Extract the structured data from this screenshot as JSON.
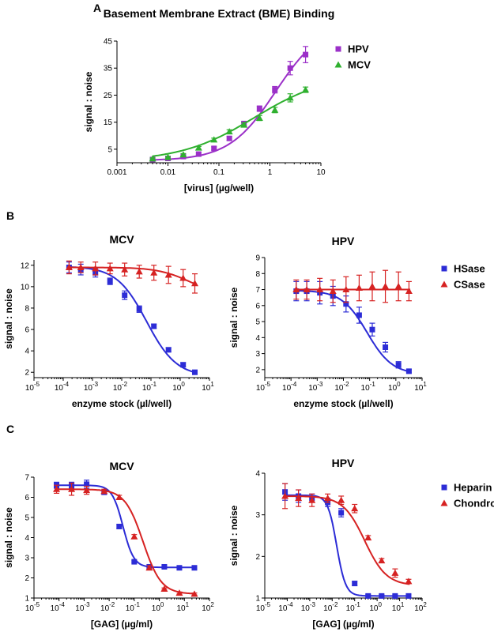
{
  "panels": [
    {
      "letter": "A"
    },
    {
      "letter": "B"
    },
    {
      "letter": "C"
    }
  ],
  "chart_data": [
    {
      "id": "A",
      "type": "scatter",
      "title": "Basement Membrane Extract (BME) Binding",
      "xlabel": "[virus] (µg/well)",
      "ylabel": "signal : noise",
      "xscale": "log",
      "xlim": [
        0.001,
        10
      ],
      "ylim": [
        0,
        45
      ],
      "xticks": [
        0.001,
        0.01,
        0.1,
        1,
        10
      ],
      "xticklabels": [
        "0.001",
        "0.01",
        "0.1",
        "1",
        "10"
      ],
      "yticks": [
        5,
        15,
        25,
        35,
        45
      ],
      "yticklabels": [
        "5",
        "15",
        "25",
        "35",
        "45"
      ],
      "legend": "top-right",
      "series": [
        {
          "name": "HPV",
          "color": "#9b30c8",
          "marker": "square",
          "x": [
            0.005,
            0.01,
            0.02,
            0.04,
            0.08,
            0.16,
            0.31,
            0.625,
            1.25,
            2.5,
            5
          ],
          "y": [
            1.2,
            1.6,
            2.3,
            3.2,
            5.3,
            9.0,
            14.5,
            20.0,
            27.0,
            35.0,
            40.0
          ],
          "err": [
            0.3,
            0.3,
            0.4,
            0.4,
            0.6,
            0.7,
            0.8,
            1.0,
            1.2,
            2.5,
            3.0
          ],
          "curve": {
            "bottom": 0.8,
            "top": 52,
            "ec50": 1.3,
            "hill": 0.95
          }
        },
        {
          "name": "MCV",
          "color": "#2fb02f",
          "marker": "triangle",
          "x": [
            0.005,
            0.01,
            0.02,
            0.04,
            0.08,
            0.16,
            0.31,
            0.625,
            1.25,
            2.5,
            5
          ],
          "y": [
            1.5,
            2.0,
            3.0,
            5.5,
            8.5,
            11.5,
            14.0,
            16.5,
            19.5,
            24.0,
            27.0
          ],
          "err": [
            0.3,
            0.3,
            0.4,
            0.5,
            0.6,
            0.7,
            0.8,
            0.9,
            1.0,
            1.5,
            1.0
          ],
          "curve": {
            "bottom": 0.5,
            "top": 33,
            "ec50": 0.5,
            "hill": 0.6
          }
        }
      ]
    },
    {
      "id": "B-left",
      "type": "scatter",
      "title": "MCV",
      "xlabel": "enzyme stock (µl/well)",
      "ylabel": "signal : noise",
      "xscale": "log",
      "xlim": [
        -5,
        1
      ],
      "ylim": [
        1.5,
        12.5
      ],
      "xticks": [
        -5,
        -4,
        -3,
        -2,
        -1,
        0,
        1
      ],
      "yticks": [
        2,
        4,
        6,
        8,
        10,
        12
      ],
      "yticklabels": [
        "2",
        "4",
        "6",
        "8",
        "10",
        "12"
      ],
      "series": [
        {
          "name": "HSase",
          "color": "#2c2cd6",
          "marker": "square",
          "x": [
            -3.8,
            -3.4,
            -2.9,
            -2.4,
            -1.9,
            -1.4,
            -0.9,
            -0.4,
            0.1,
            0.5
          ],
          "y": [
            11.8,
            11.6,
            11.3,
            10.5,
            9.2,
            7.9,
            6.3,
            4.1,
            2.7,
            2.0
          ],
          "err": [
            0.5,
            0.5,
            0.4,
            0.3,
            0.4,
            0.3,
            0.2,
            0.2,
            0.2,
            0.2
          ],
          "curve": {
            "top": 11.9,
            "bottom": 1.6,
            "logec50": -1.15,
            "hill": 0.85
          }
        },
        {
          "name": "CSase",
          "color": "#d62222",
          "marker": "triangle",
          "x": [
            -3.8,
            -3.4,
            -2.9,
            -2.4,
            -1.9,
            -1.4,
            -0.9,
            -0.4,
            0.1,
            0.5
          ],
          "y": [
            11.8,
            11.8,
            11.7,
            11.7,
            11.6,
            11.4,
            11.3,
            11.1,
            10.8,
            10.3
          ],
          "err": [
            0.6,
            0.5,
            0.6,
            0.5,
            0.6,
            0.6,
            0.7,
            0.8,
            0.8,
            0.9
          ],
          "curve": {
            "top": 11.8,
            "bottom": 9.2,
            "logec50": 0.3,
            "hill": 0.8
          }
        }
      ]
    },
    {
      "id": "B-right",
      "type": "scatter",
      "title": "HPV",
      "xlabel": "enzyme stock (µl/well)",
      "ylabel": "signal : noise",
      "xscale": "log",
      "xlim": [
        -5,
        1
      ],
      "ylim": [
        1.5,
        9
      ],
      "xticks": [
        -5,
        -4,
        -3,
        -2,
        -1,
        0,
        1
      ],
      "yticks": [
        2,
        3,
        4,
        5,
        6,
        7,
        8,
        9
      ],
      "yticklabels": [
        "2",
        "3",
        "4",
        "5",
        "6",
        "7",
        "8",
        "9"
      ],
      "legend": "right",
      "series": [
        {
          "name": "HSase",
          "color": "#2c2cd6",
          "marker": "square",
          "x": [
            -3.8,
            -3.4,
            -2.9,
            -2.4,
            -1.9,
            -1.4,
            -0.9,
            -0.4,
            0.1,
            0.5
          ],
          "y": [
            6.9,
            6.9,
            6.8,
            6.6,
            6.1,
            5.4,
            4.5,
            3.4,
            2.3,
            1.9
          ],
          "err": [
            0.6,
            0.6,
            0.7,
            0.6,
            0.5,
            0.5,
            0.4,
            0.3,
            0.2,
            0.1
          ],
          "curve": {
            "top": 6.95,
            "bottom": 1.7,
            "logec50": -1.1,
            "hill": 0.9
          }
        },
        {
          "name": "CSase",
          "color": "#d62222",
          "marker": "triangle",
          "x": [
            -3.8,
            -3.4,
            -2.9,
            -2.4,
            -1.9,
            -1.4,
            -0.9,
            -0.4,
            0.1,
            0.5
          ],
          "y": [
            7.0,
            7.0,
            7.0,
            6.9,
            7.0,
            7.1,
            7.2,
            7.2,
            7.2,
            6.9
          ],
          "err": [
            0.6,
            0.6,
            0.7,
            0.7,
            0.8,
            0.8,
            0.9,
            1.0,
            0.9,
            0.6
          ],
          "curve": {
            "flat": 7.0
          }
        }
      ]
    },
    {
      "id": "C-left",
      "type": "scatter",
      "title": "MCV",
      "xlabel": "[GAG] (µg/ml)",
      "ylabel": "signal : noise",
      "xscale": "log",
      "xlim": [
        -5,
        2
      ],
      "ylim": [
        1,
        7
      ],
      "xticks": [
        -5,
        -4,
        -3,
        -2,
        -1,
        0,
        1,
        2
      ],
      "yticks": [
        1,
        2,
        3,
        4,
        5,
        6,
        7
      ],
      "yticklabels": [
        "1",
        "2",
        "3",
        "4",
        "5",
        "6",
        "7"
      ],
      "series": [
        {
          "name": "Heparin",
          "color": "#2c2cd6",
          "marker": "square",
          "x": [
            -4.1,
            -3.5,
            -2.9,
            -2.2,
            -1.6,
            -1.0,
            -0.4,
            0.2,
            0.8,
            1.4
          ],
          "y": [
            6.6,
            6.6,
            6.65,
            6.25,
            4.55,
            2.8,
            2.55,
            2.55,
            2.5,
            2.5
          ],
          "err": [
            0.15,
            0.15,
            0.2,
            0.1,
            0.1,
            0.05,
            0.05,
            0.05,
            0.05,
            0.05
          ],
          "curve": {
            "top": 6.6,
            "bottom": 2.52,
            "logec50": -1.45,
            "hill": 2.0
          }
        },
        {
          "name": "Chondroitin",
          "color": "#d62222",
          "marker": "triangle",
          "x": [
            -4.1,
            -3.5,
            -2.9,
            -2.2,
            -1.6,
            -1.0,
            -0.4,
            0.2,
            0.8,
            1.4
          ],
          "y": [
            6.4,
            6.4,
            6.35,
            6.3,
            6.0,
            4.05,
            2.5,
            1.45,
            1.25,
            1.2
          ],
          "err": [
            0.2,
            0.3,
            0.2,
            0.1,
            0.1,
            0.1,
            0.1,
            0.05,
            0.05,
            0.05
          ],
          "curve": {
            "top": 6.4,
            "bottom": 1.2,
            "logec50": -0.65,
            "hill": 1.2
          }
        }
      ]
    },
    {
      "id": "C-right",
      "type": "scatter",
      "title": "HPV",
      "xlabel": "[GAG] (µg/ml)",
      "ylabel": "signal : noise",
      "xscale": "log",
      "xlim": [
        -5,
        2
      ],
      "ylim": [
        1,
        4
      ],
      "xticks": [
        -5,
        -4,
        -3,
        -2,
        -1,
        0,
        1,
        2
      ],
      "yticks": [
        1,
        2,
        3,
        4
      ],
      "yticklabels": [
        "1",
        "2",
        "3",
        "4"
      ],
      "legend": "right",
      "series": [
        {
          "name": "Heparin",
          "color": "#2c2cd6",
          "marker": "square",
          "x": [
            -4.1,
            -3.5,
            -2.9,
            -2.2,
            -1.6,
            -1.0,
            -0.4,
            0.2,
            0.8,
            1.4
          ],
          "y": [
            3.55,
            3.45,
            3.4,
            3.3,
            3.05,
            1.35,
            1.05,
            1.05,
            1.05,
            1.05
          ],
          "err": [
            0.2,
            0.15,
            0.1,
            0.1,
            0.1,
            0.05,
            0.03,
            0.03,
            0.03,
            0.03
          ],
          "curve": {
            "top": 3.47,
            "bottom": 1.05,
            "logec50": -1.8,
            "hill": 2.2
          }
        },
        {
          "name": "Chondroitin",
          "color": "#d62222",
          "marker": "triangle",
          "x": [
            -4.1,
            -3.5,
            -2.9,
            -2.2,
            -1.6,
            -1.0,
            -0.4,
            0.2,
            0.8,
            1.4
          ],
          "y": [
            3.45,
            3.4,
            3.35,
            3.4,
            3.35,
            3.15,
            2.45,
            1.9,
            1.6,
            1.4
          ],
          "err": [
            0.3,
            0.2,
            0.15,
            0.1,
            0.1,
            0.1,
            0.05,
            0.05,
            0.1,
            0.05
          ],
          "curve": {
            "top": 3.45,
            "bottom": 1.3,
            "logec50": -0.55,
            "hill": 0.9
          }
        }
      ]
    }
  ]
}
